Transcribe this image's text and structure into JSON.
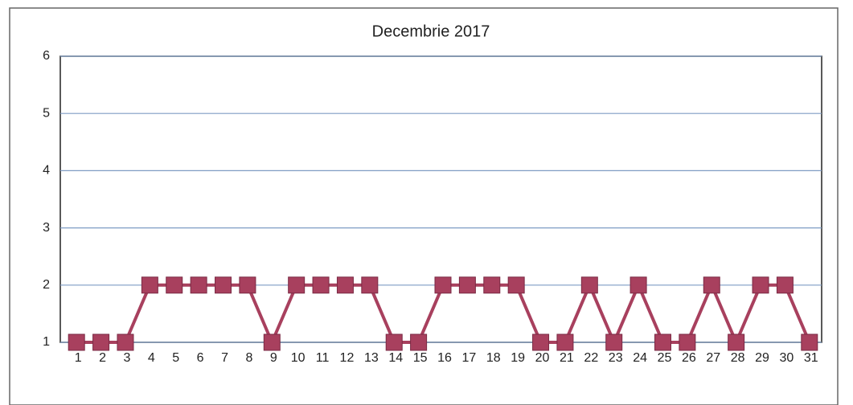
{
  "chart_data": {
    "type": "line",
    "title": "Decembrie 2017",
    "categories": [
      "1",
      "2",
      "3",
      "4",
      "5",
      "6",
      "7",
      "8",
      "9",
      "10",
      "11",
      "12",
      "13",
      "14",
      "15",
      "16",
      "17",
      "18",
      "19",
      "20",
      "21",
      "22",
      "23",
      "24",
      "25",
      "26",
      "27",
      "28",
      "29",
      "30",
      "31"
    ],
    "series": [
      {
        "name": "Decembrie 2017",
        "color": "#a8405e",
        "values": [
          1,
          1,
          1,
          2,
          2,
          2,
          2,
          2,
          1,
          2,
          2,
          2,
          2,
          1,
          1,
          2,
          2,
          2,
          2,
          1,
          1,
          2,
          1,
          2,
          1,
          1,
          2,
          1,
          2,
          2,
          1
        ]
      }
    ],
    "ylim": [
      1,
      6
    ],
    "yticks": [
      1,
      2,
      3,
      4,
      5,
      6
    ],
    "grid": true
  }
}
